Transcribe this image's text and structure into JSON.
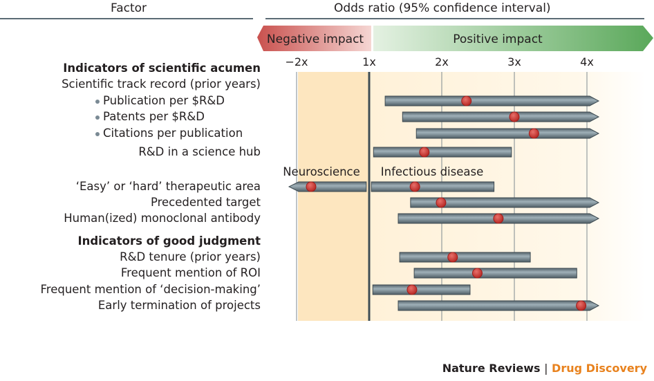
{
  "header": {
    "factor": "Factor",
    "odds": "Odds ratio (95% confidence interval)"
  },
  "banner": {
    "negative": "Negative impact",
    "positive": "Positive impact",
    "negative_color": "#c9514e",
    "positive_color": "#5aa85a"
  },
  "footer": {
    "journal": "Nature Reviews",
    "separator": "|",
    "section": "Drug Discovery",
    "section_color": "#e8821e"
  },
  "chart_data": {
    "type": "forest",
    "xlabel": "Odds ratio (95% confidence interval)",
    "ticks": [
      "−2x",
      "1x",
      "2x",
      "3x",
      "4x"
    ],
    "tick_values": [
      -2,
      1,
      2,
      3,
      4
    ],
    "note": "",
    "rows": [
      {
        "label": "Indicators of scientific acumen",
        "style": "heading"
      },
      {
        "label": "Scientific track record (prior years)",
        "style": "normal"
      },
      {
        "label": "Publication per $R&D",
        "style": "bullet",
        "series": [
          {
            "low": 1.22,
            "est": 2.34,
            "high": ">4",
            "open_high": true
          }
        ]
      },
      {
        "label": "Patents per $R&D",
        "style": "bullet",
        "series": [
          {
            "low": 1.46,
            "est": 3.0,
            "high": ">4",
            "open_high": true
          }
        ]
      },
      {
        "label": "Citations per publication",
        "style": "bullet",
        "series": [
          {
            "low": 1.65,
            "est": 3.27,
            "high": ">4",
            "open_high": true
          }
        ]
      },
      {
        "label": "R&D in a science hub",
        "style": "normal",
        "series": [
          {
            "low": 1.06,
            "est": 1.76,
            "high": 2.96
          }
        ]
      },
      {
        "label": "",
        "style": "annotations",
        "annotations": [
          "Neuroscience",
          "Infectious disease"
        ]
      },
      {
        "label": "‘Easy’ or ‘hard’ therapeutic area",
        "style": "normal",
        "series": [
          {
            "name": "Neuroscience",
            "low": "<−2",
            "est": -1.8,
            "high": -1.04,
            "open_low": true
          },
          {
            "name": "Infectious disease",
            "low": 1.03,
            "est": 1.63,
            "high": 2.72
          }
        ]
      },
      {
        "label": "Precedented target",
        "style": "normal",
        "series": [
          {
            "low": 1.57,
            "est": 1.99,
            "high": ">4",
            "open_high": true
          }
        ]
      },
      {
        "label": "Human(ized) monoclonal antibody",
        "style": "normal",
        "series": [
          {
            "low": 1.4,
            "est": 2.78,
            "high": ">4",
            "open_high": true
          }
        ]
      },
      {
        "label": "Indicators of good judgment",
        "style": "heading"
      },
      {
        "label": "R&D tenure (prior years)",
        "style": "normal",
        "series": [
          {
            "low": 1.42,
            "est": 2.15,
            "high": 3.22
          }
        ]
      },
      {
        "label": "Frequent mention of ROI",
        "style": "normal",
        "series": [
          {
            "low": 1.62,
            "est": 2.49,
            "high": 3.86
          }
        ]
      },
      {
        "label": "Frequent mention of ‘decision-making’",
        "style": "normal",
        "series": [
          {
            "low": 1.05,
            "est": 1.59,
            "high": 2.39
          }
        ]
      },
      {
        "label": "Early termination of projects",
        "style": "normal",
        "series": [
          {
            "low": 1.4,
            "est": 3.92,
            "high": ">4",
            "open_high": true
          }
        ]
      }
    ],
    "colors": {
      "bar": "#6f8590",
      "point": "#c0302e",
      "negative_zone": "#fde6bf",
      "positive_zone": "#fff3dc"
    }
  }
}
